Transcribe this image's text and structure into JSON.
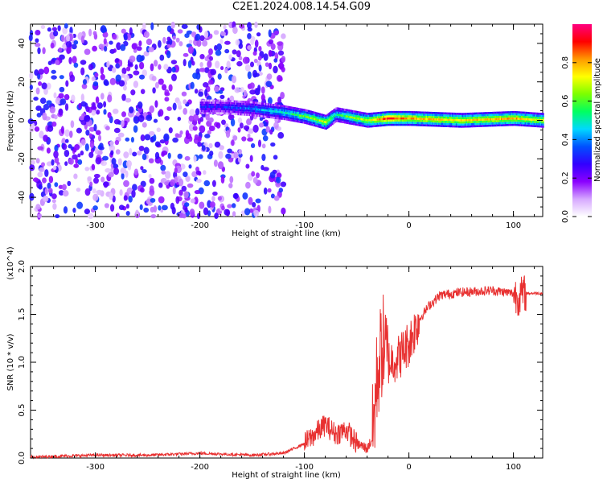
{
  "title": "C2E1.2024.008.14.54.G09",
  "chart_data": [
    {
      "type": "heatmap",
      "title": "C2E1.2024.008.14.54.G09",
      "xlabel": "Height of straight line (km)",
      "ylabel": "Frequency (Hz)",
      "xlim": [
        -362,
        128
      ],
      "ylim": [
        -50,
        50
      ],
      "xticks": [
        -300,
        -200,
        -100,
        0,
        100
      ],
      "yticks": [
        -40,
        -20,
        0,
        20,
        40
      ],
      "colorbar": {
        "label": "Normalized spectral amplitude",
        "range": [
          0.0,
          1.0
        ],
        "ticks": [
          0.0,
          0.2,
          0.4,
          0.6,
          0.8
        ],
        "colors": [
          "#ffffff",
          "#d6a8ff",
          "#8a00ff",
          "#3200ff",
          "#0050ff",
          "#00d8ff",
          "#00ff60",
          "#7cff00",
          "#ffff00",
          "#ff9900",
          "#ff0000",
          "#ff0080"
        ]
      },
      "ridge": {
        "x": [
          -180,
          -150,
          -120,
          -100,
          -80,
          -70,
          -60,
          -40,
          -20,
          0,
          50,
          100,
          128
        ],
        "frequency": [
          7,
          6,
          4,
          2,
          -1,
          3,
          2,
          0,
          1,
          1,
          0,
          1,
          0
        ],
        "amplitude": [
          0.3,
          0.4,
          0.5,
          0.6,
          0.7,
          0.5,
          0.6,
          0.7,
          0.9,
          0.8,
          0.75,
          0.8,
          0.7
        ]
      },
      "noise_region": {
        "x_range": [
          -362,
          -120
        ],
        "frequency_range": [
          -50,
          50
        ],
        "amplitude_range": [
          0.05,
          0.35
        ]
      }
    },
    {
      "type": "line",
      "xlabel": "Height of straight line (km)",
      "ylabel": "SNR (10 * v/v)",
      "scale_label": "(x10^4)",
      "xlim": [
        -362,
        128
      ],
      "ylim": [
        0.0,
        2.0
      ],
      "xticks": [
        -300,
        -200,
        -100,
        0,
        100
      ],
      "yticks": [
        0.0,
        0.5,
        1.0,
        1.5,
        2.0
      ],
      "series": [
        {
          "color": "#e83030",
          "x": [
            -362,
            -300,
            -250,
            -200,
            -150,
            -120,
            -100,
            -90,
            -80,
            -70,
            -60,
            -50,
            -40,
            -35,
            -30,
            -25,
            -20,
            -10,
            0,
            10,
            20,
            30,
            50,
            80,
            100,
            105,
            110,
            128
          ],
          "y": [
            0.01,
            0.03,
            0.03,
            0.05,
            0.03,
            0.05,
            0.15,
            0.25,
            0.35,
            0.25,
            0.3,
            0.15,
            0.1,
            0.2,
            0.9,
            1.2,
            1.0,
            1.05,
            1.2,
            1.45,
            1.6,
            1.7,
            1.73,
            1.75,
            1.72,
            1.68,
            1.72,
            1.72
          ]
        }
      ]
    }
  ]
}
